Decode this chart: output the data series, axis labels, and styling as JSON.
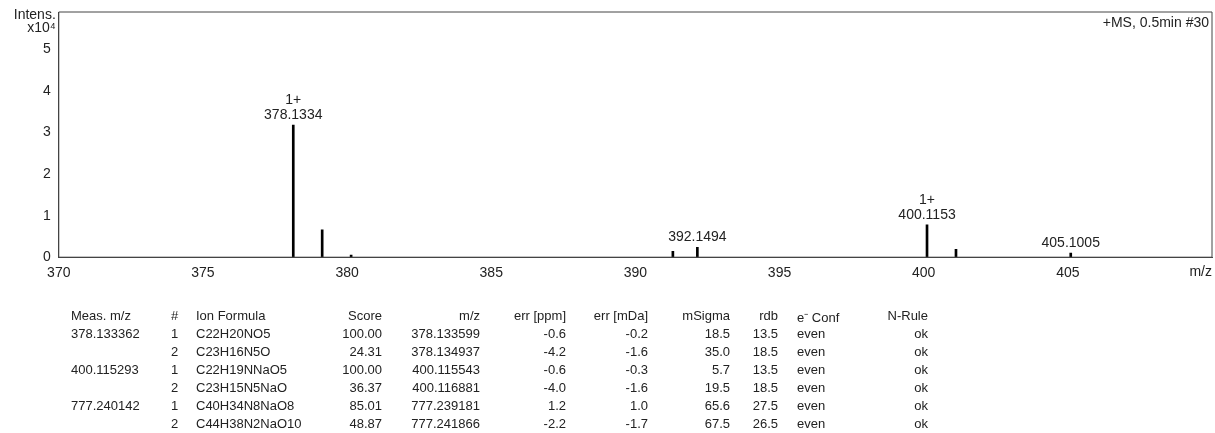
{
  "chart_data": {
    "type": "bar",
    "title": "+MS, 0.5min #30",
    "xlabel": "m/z",
    "ylabel": "Intens.\nx10⁴",
    "x": [
      378.1334,
      379.136,
      380.14,
      391.3,
      392.1494,
      400.1153,
      401.12,
      405.1005
    ],
    "series": [
      {
        "color": "#000000",
        "values": [
          3.18,
          0.66,
          0.05,
          0.14,
          0.24,
          0.78,
          0.19,
          0.1
        ]
      }
    ],
    "xlim": [
      370,
      410
    ],
    "xticks": [
      370,
      375,
      380,
      385,
      390,
      395,
      400,
      405
    ],
    "ylim": [
      0,
      5.9
    ],
    "yticks": [
      0,
      1,
      2,
      3,
      4,
      5
    ],
    "grid": false,
    "legend": false,
    "annotations": [
      {
        "text": "1+\n378.1334",
        "x": 378.1334,
        "y": 3.18
      },
      {
        "text": "392.1494",
        "x": 392.1494,
        "y": 0.24
      },
      {
        "text": "1+\n400.1153",
        "x": 400.1153,
        "y": 0.78
      },
      {
        "text": "405.1005",
        "x": 405.1005,
        "y": 0.1
      },
      "Meas. m/z",
      "#",
      "Ion Formula",
      "Score",
      "m/z",
      "err [ppm]",
      "err [mDa]",
      "mSigma",
      "rdb",
      "e⁻ Conf",
      "N-Rule",
      "378.133362",
      "1",
      "C22H20NO5",
      "100.00",
      "378.133599",
      "-0.6",
      "-0.2",
      "18.5",
      "13.5",
      "even",
      "ok",
      "2",
      "C23H16N5O",
      "24.31",
      "378.134937",
      "-4.2",
      "-1.6",
      "35.0",
      "18.5",
      "even",
      "ok",
      "400.115293",
      "1",
      "C22H19NNaO5",
      "100.00",
      "400.115543",
      "-0.6",
      "-0.3",
      "5.7",
      "13.5",
      "even",
      "ok",
      "2",
      "C23H15N5NaO",
      "36.37",
      "400.116881",
      "-4.0",
      "-1.6",
      "19.5",
      "18.5",
      "even",
      "ok",
      "777.240142",
      "1",
      "C40H34N8NaO8",
      "85.01",
      "777.239181",
      "1.2",
      "1.0",
      "65.6",
      "27.5",
      "even",
      "ok",
      "2",
      "C44H38N2NaO10",
      "48.87",
      "777.241866",
      "-2.2",
      "-1.7",
      "67.5",
      "26.5",
      "even",
      "ok"
    ]
  }
}
